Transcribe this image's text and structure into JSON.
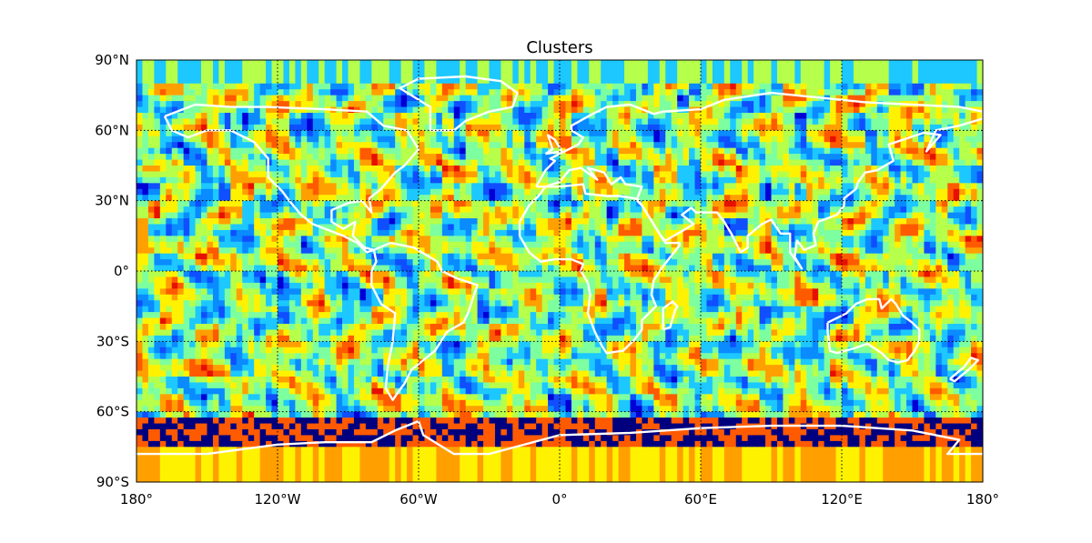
{
  "title": "Clusters",
  "map": {
    "projection": "equirectangular",
    "lon_range": [
      -180,
      180
    ],
    "lat_range": [
      -90,
      90
    ],
    "grid": "on",
    "grid_style": "dotted",
    "grid_color": "#000000",
    "coastline_color": "#ffffff",
    "colormap": "jet",
    "lon_ticks": [
      {
        "value": -180,
        "label": "180°"
      },
      {
        "value": -120,
        "label": "120°W"
      },
      {
        "value": -60,
        "label": "60°W"
      },
      {
        "value": 0,
        "label": "0°"
      },
      {
        "value": 60,
        "label": "60°E"
      },
      {
        "value": 120,
        "label": "120°E"
      },
      {
        "value": 180,
        "label": "180°"
      }
    ],
    "lat_ticks": [
      {
        "value": 90,
        "label": "90°N"
      },
      {
        "value": 60,
        "label": "60°N"
      },
      {
        "value": 30,
        "label": "30°N"
      },
      {
        "value": 0,
        "label": "0°"
      },
      {
        "value": -30,
        "label": "30°S"
      },
      {
        "value": -60,
        "label": "60°S"
      },
      {
        "value": -90,
        "label": "90°S"
      }
    ],
    "cluster_colors": [
      "#00007f",
      "#0000d6",
      "#0f4fff",
      "#0a8bff",
      "#1cc8ff",
      "#7dffa0",
      "#b6ff4a",
      "#fff200",
      "#ffa000",
      "#ff5a00",
      "#e61000",
      "#7f0000"
    ]
  }
}
